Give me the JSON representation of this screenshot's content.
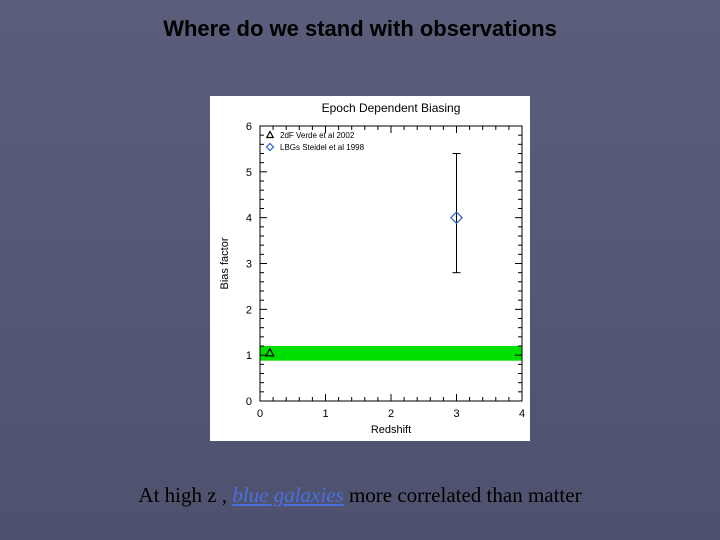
{
  "title": "Where do we stand with observations",
  "caption": {
    "prefix": "At high z , ",
    "blue_text": "blue galaxies",
    "suffix": "  more correlated than matter"
  },
  "chart": {
    "title": "Epoch Dependent Biasing",
    "title_fontsize": 12,
    "title_color": "#000000",
    "xlabel": "Redshift",
    "ylabel": "Bias factor",
    "label_fontsize": 11,
    "background_color": "#ffffff",
    "plot_bg": "#ffffff",
    "axis_color": "#000000",
    "tick_color": "#000000",
    "xlim": [
      0,
      4
    ],
    "ylim": [
      0,
      6
    ],
    "xticks": [
      0,
      1,
      2,
      3,
      4
    ],
    "yticks": [
      0,
      1,
      2,
      3,
      4,
      5,
      6
    ],
    "minor_tick_count_between": 4,
    "legend": {
      "items": [
        {
          "marker": "triangle",
          "color": "#000000",
          "label": "2dF Verde et al 2002"
        },
        {
          "marker": "diamond",
          "color": "#3060d0",
          "label": "LBGs Steidel et al 1998"
        }
      ],
      "fontsize": 8
    },
    "band": {
      "y_center": 1.04,
      "y_half_height": 0.16,
      "color": "#00e000"
    },
    "points": [
      {
        "x": 0.15,
        "y": 1.05,
        "marker": "triangle",
        "color": "#000000",
        "size": 6,
        "err_low": null,
        "err_high": null
      },
      {
        "x": 3.0,
        "y": 4.0,
        "marker": "diamond",
        "color": "#3060d0",
        "size": 8,
        "err_low": 2.8,
        "err_high": 5.4
      }
    ]
  }
}
